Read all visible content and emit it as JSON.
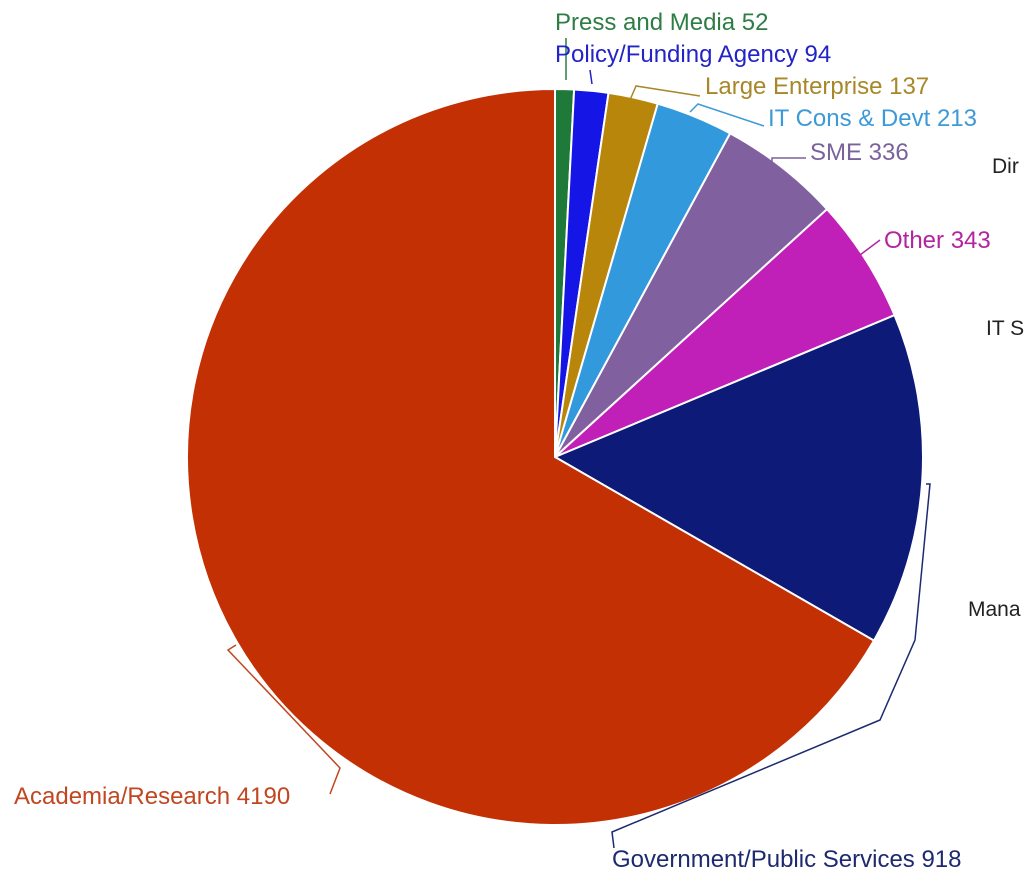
{
  "chart_data": {
    "type": "pie",
    "start_angle_deg": 0,
    "direction": "clockwise",
    "slices": [
      {
        "label": "Press and Media",
        "value": 52,
        "text": "Press and Media 52",
        "color": "#1f7a3a",
        "label_color": "#2e7d45"
      },
      {
        "label": "Policy/Funding Agency",
        "value": 94,
        "text": "Policy/Funding Agency 94",
        "color": "#1515e6",
        "label_color": "#2323c8"
      },
      {
        "label": "Large Enterprise",
        "value": 137,
        "text": "Large Enterprise 137",
        "color": "#b8860b",
        "label_color": "#a88728"
      },
      {
        "label": "IT Cons & Devt",
        "value": 213,
        "text": "IT Cons & Devt 213",
        "color": "#3399dd",
        "label_color": "#3d9ad6"
      },
      {
        "label": "SME",
        "value": 336,
        "text": "SME 336",
        "color": "#80609f",
        "label_color": "#7a629a"
      },
      {
        "label": "Other",
        "value": 343,
        "text": "Other 343",
        "color": "#c020b8",
        "label_color": "#b3249f"
      },
      {
        "label": "Government/Public Services",
        "value": 918,
        "text": "Government/Public Services 918",
        "color": "#0d1a78",
        "label_color": "#1d2a70"
      },
      {
        "label": "Academia/Research",
        "value": 4190,
        "text": "Academia/Research 4190",
        "color": "#c23004",
        "label_color": "#c0471f"
      }
    ]
  },
  "side_texts": [
    "Dir",
    "IT S",
    "Mana"
  ]
}
